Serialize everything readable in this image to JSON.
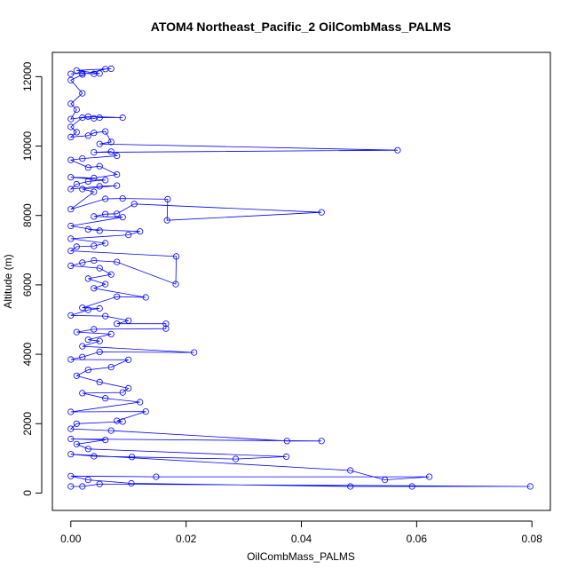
{
  "chart_data": {
    "type": "scatter",
    "title": "ATOM4 Northeast_Pacific_2 OilCombMass_PALMS",
    "xlabel": "OilCombMass_PALMS",
    "ylabel": "Altitude (m)",
    "xlim": [
      -0.0032,
      0.0832
    ],
    "ylim": [
      -500,
      12700
    ],
    "xticks": [
      0.0,
      0.02,
      0.04,
      0.06,
      0.08
    ],
    "xtick_labels": [
      "0.00",
      "0.02",
      "0.04",
      "0.06",
      "0.08"
    ],
    "yticks": [
      0,
      2000,
      4000,
      6000,
      8000,
      10000,
      12000
    ],
    "ytick_labels": [
      "0",
      "2000",
      "4000",
      "6000",
      "8000",
      "10000",
      "12000"
    ],
    "grid": false,
    "series_color": "#0000ff",
    "marker": "open-circle",
    "connected": true,
    "points": [
      [
        0.0,
        12080
      ],
      [
        0.002,
        12100
      ],
      [
        0.004,
        12080
      ],
      [
        0.005,
        12090
      ],
      [
        0.001,
        12180
      ],
      [
        0.007,
        12230
      ],
      [
        0.006,
        12220
      ],
      [
        0.002,
        12060
      ],
      [
        0.0,
        11900
      ],
      [
        0.002,
        11520
      ],
      [
        0.0,
        11220
      ],
      [
        0.001,
        11050
      ],
      [
        0.0,
        10780
      ],
      [
        0.003,
        10850
      ],
      [
        0.009,
        10820
      ],
      [
        0.005,
        10820
      ],
      [
        0.004,
        10800
      ],
      [
        0.002,
        10820
      ],
      [
        0.0,
        10550
      ],
      [
        0.001,
        10400
      ],
      [
        0.0,
        10260
      ],
      [
        0.003,
        10300
      ],
      [
        0.004,
        10380
      ],
      [
        0.006,
        10420
      ],
      [
        0.007,
        10120
      ],
      [
        0.005,
        10060
      ],
      [
        0.0567,
        9880
      ],
      [
        0.004,
        9820
      ],
      [
        0.007,
        9840
      ],
      [
        0.008,
        9720
      ],
      [
        0.002,
        9640
      ],
      [
        0.0,
        9600
      ],
      [
        0.003,
        9380
      ],
      [
        0.005,
        9420
      ],
      [
        0.008,
        9180
      ],
      [
        0.004,
        9080
      ],
      [
        0.0,
        9100
      ],
      [
        0.006,
        9020
      ],
      [
        0.003,
        8980
      ],
      [
        0.001,
        8900
      ],
      [
        0.0,
        8760
      ],
      [
        0.005,
        8840
      ],
      [
        0.008,
        8860
      ],
      [
        0.002,
        8760
      ],
      [
        0.004,
        8680
      ],
      [
        0.0,
        8180
      ],
      [
        0.006,
        8480
      ],
      [
        0.009,
        8490
      ],
      [
        0.0168,
        8470
      ],
      [
        0.0167,
        7860
      ],
      [
        0.0435,
        8090
      ],
      [
        0.011,
        8330
      ],
      [
        0.008,
        8050
      ],
      [
        0.006,
        8040
      ],
      [
        0.004,
        7970
      ],
      [
        0.009,
        7950
      ],
      [
        0.0,
        7700
      ],
      [
        0.005,
        7560
      ],
      [
        0.003,
        7600
      ],
      [
        0.012,
        7540
      ],
      [
        0.01,
        7440
      ],
      [
        0.0,
        7330
      ],
      [
        0.006,
        7200
      ],
      [
        0.004,
        7120
      ],
      [
        0.001,
        7100
      ],
      [
        0.0,
        6980
      ],
      [
        0.0183,
        6820
      ],
      [
        0.0182,
        6020
      ],
      [
        0.008,
        6660
      ],
      [
        0.004,
        6700
      ],
      [
        0.002,
        6640
      ],
      [
        0.0,
        6550
      ],
      [
        0.005,
        6480
      ],
      [
        0.007,
        6300
      ],
      [
        0.003,
        6180
      ],
      [
        0.006,
        6020
      ],
      [
        0.004,
        5900
      ],
      [
        0.013,
        5640
      ],
      [
        0.008,
        5660
      ],
      [
        0.002,
        5340
      ],
      [
        0.005,
        5320
      ],
      [
        0.003,
        5280
      ],
      [
        0.0,
        5120
      ],
      [
        0.006,
        5100
      ],
      [
        0.01,
        4970
      ],
      [
        0.008,
        4880
      ],
      [
        0.0165,
        4880
      ],
      [
        0.0165,
        4740
      ],
      [
        0.004,
        4720
      ],
      [
        0.001,
        4640
      ],
      [
        0.007,
        4580
      ],
      [
        0.003,
        4420
      ],
      [
        0.005,
        4380
      ],
      [
        0.002,
        4230
      ],
      [
        0.0214,
        4050
      ],
      [
        0.005,
        4070
      ],
      [
        0.002,
        3920
      ],
      [
        0.0,
        3850
      ],
      [
        0.01,
        3840
      ],
      [
        0.007,
        3630
      ],
      [
        0.003,
        3550
      ],
      [
        0.001,
        3380
      ],
      [
        0.005,
        3200
      ],
      [
        0.01,
        3020
      ],
      [
        0.009,
        2900
      ],
      [
        0.002,
        2880
      ],
      [
        0.006,
        2730
      ],
      [
        0.012,
        2620
      ],
      [
        0.0,
        2340
      ],
      [
        0.013,
        2350
      ],
      [
        0.008,
        2080
      ],
      [
        0.009,
        2060
      ],
      [
        0.001,
        2000
      ],
      [
        0.0,
        1850
      ],
      [
        0.007,
        1800
      ],
      [
        0.0375,
        1500
      ],
      [
        0.0435,
        1500
      ],
      [
        0.0,
        1560
      ],
      [
        0.006,
        1530
      ],
      [
        0.001,
        1410
      ],
      [
        0.003,
        1270
      ],
      [
        0.0374,
        1050
      ],
      [
        0.0286,
        980
      ],
      [
        0.0106,
        1040
      ],
      [
        0.004,
        1060
      ],
      [
        0.0,
        1120
      ],
      [
        0.0485,
        650
      ],
      [
        0.0545,
        380
      ],
      [
        0.0622,
        470
      ],
      [
        0.0148,
        470
      ],
      [
        0.0,
        490
      ],
      [
        0.003,
        380
      ],
      [
        0.0105,
        280
      ],
      [
        0.0485,
        190
      ],
      [
        0.0592,
        190
      ],
      [
        0.0797,
        190
      ],
      [
        0.005,
        260
      ],
      [
        0.002,
        190
      ],
      [
        0.0,
        190
      ]
    ]
  }
}
